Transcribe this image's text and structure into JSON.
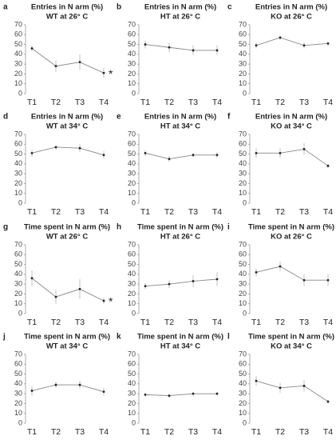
{
  "chart_data": [
    {
      "type": "line",
      "panel_label": "a",
      "title": "Entries in N arm (%)",
      "subtitle": "WT at 26° C",
      "categories": [
        "T1",
        "T2",
        "T3",
        "T4"
      ],
      "series": [
        {
          "color": "#888888",
          "values": [
            46,
            28,
            32,
            21
          ],
          "errors": [
            3,
            6,
            8,
            5
          ]
        }
      ],
      "annotation": "*",
      "ylim": [
        0,
        70
      ],
      "yticks": [
        0,
        10,
        20,
        30,
        40,
        50,
        60,
        70
      ]
    },
    {
      "type": "line",
      "panel_label": "b",
      "title": "Entries in N arm (%)",
      "subtitle": "HT at 26° C",
      "categories": [
        "T1",
        "T2",
        "T3",
        "T4"
      ],
      "series": [
        {
          "color": "#888888",
          "values": [
            50,
            47,
            44,
            44
          ],
          "errors": [
            4,
            5,
            5,
            5
          ]
        }
      ],
      "ylim": [
        0,
        70
      ],
      "yticks": [
        0,
        10,
        20,
        30,
        40,
        50,
        60,
        70
      ]
    },
    {
      "type": "line",
      "panel_label": "c",
      "title": "Entries in N arm (%)",
      "subtitle": "KO at 26° C",
      "categories": [
        "T1",
        "T2",
        "T3",
        "T4"
      ],
      "series": [
        {
          "color": "#888888",
          "values": [
            49,
            57,
            49,
            51
          ],
          "errors": [
            3,
            2,
            3,
            2
          ]
        }
      ],
      "ylim": [
        0,
        70
      ],
      "yticks": [
        0,
        10,
        20,
        30,
        40,
        50,
        60,
        70
      ]
    },
    {
      "type": "line",
      "panel_label": "d",
      "title": "Entries in N arm (%)",
      "subtitle": "WT at 34° C",
      "categories": [
        "T1",
        "T2",
        "T3",
        "T4"
      ],
      "series": [
        {
          "color": "#888888",
          "values": [
            51,
            57,
            56,
            49
          ],
          "errors": [
            4,
            2,
            4,
            4
          ]
        }
      ],
      "ylim": [
        0,
        70
      ],
      "yticks": [
        0,
        10,
        20,
        30,
        40,
        50,
        60,
        70
      ]
    },
    {
      "type": "line",
      "panel_label": "e",
      "title": "Entries in N arm (%)",
      "subtitle": "HT at 34° C",
      "categories": [
        "T1",
        "T2",
        "T3",
        "T4"
      ],
      "series": [
        {
          "color": "#888888",
          "values": [
            51,
            45,
            49,
            49
          ],
          "errors": [
            3,
            3,
            2,
            3
          ]
        }
      ],
      "ylim": [
        0,
        70
      ],
      "yticks": [
        0,
        10,
        20,
        30,
        40,
        50,
        60,
        70
      ]
    },
    {
      "type": "line",
      "panel_label": "f",
      "title": "Entries in N arm (%)",
      "subtitle": "KO at 34° C",
      "categories": [
        "T1",
        "T2",
        "T3",
        "T4"
      ],
      "series": [
        {
          "color": "#888888",
          "values": [
            51,
            51,
            55,
            38
          ],
          "errors": [
            5,
            5,
            6,
            2
          ]
        }
      ],
      "ylim": [
        0,
        70
      ],
      "yticks": [
        0,
        10,
        20,
        30,
        40,
        50,
        60,
        70
      ]
    },
    {
      "type": "line",
      "panel_label": "g",
      "title": "Time spent in N arm (%)",
      "subtitle": "WT at 26° C",
      "categories": [
        "T1",
        "T2",
        "T3",
        "T4"
      ],
      "series": [
        {
          "color": "#888888",
          "values": [
            36,
            17,
            25,
            13
          ],
          "errors": [
            8,
            7,
            10,
            3
          ]
        }
      ],
      "annotation": "*",
      "ylim": [
        0,
        70
      ],
      "yticks": [
        0,
        10,
        20,
        30,
        40,
        50,
        60,
        70
      ]
    },
    {
      "type": "line",
      "panel_label": "h",
      "title": "Time spent in N arm (%)",
      "subtitle": "HT at 26° C",
      "categories": [
        "T1",
        "T2",
        "T3",
        "T4"
      ],
      "series": [
        {
          "color": "#888888",
          "values": [
            28,
            30,
            33,
            35
          ],
          "errors": [
            3,
            4,
            6,
            7
          ]
        }
      ],
      "ylim": [
        0,
        70
      ],
      "yticks": [
        0,
        10,
        20,
        30,
        40,
        50,
        60,
        70
      ]
    },
    {
      "type": "line",
      "panel_label": "i",
      "title": "Time spent in N arm (%)",
      "subtitle": "KO at 26° C",
      "categories": [
        "T1",
        "T2",
        "T3",
        "T4"
      ],
      "series": [
        {
          "color": "#888888",
          "values": [
            42,
            48,
            34,
            34
          ],
          "errors": [
            4,
            5,
            6,
            6
          ]
        }
      ],
      "ylim": [
        0,
        70
      ],
      "yticks": [
        0,
        10,
        20,
        30,
        40,
        50,
        60,
        70
      ]
    },
    {
      "type": "line",
      "panel_label": "j",
      "title": "Time spent in N arm (%)",
      "subtitle": "WT at 34° C",
      "categories": [
        "T1",
        "T2",
        "T3",
        "T4"
      ],
      "series": [
        {
          "color": "#888888",
          "values": [
            33,
            39,
            39,
            32
          ],
          "errors": [
            5,
            3,
            4,
            4
          ]
        }
      ],
      "ylim": [
        0,
        70
      ],
      "yticks": [
        0,
        10,
        20,
        30,
        40,
        50,
        60,
        70
      ]
    },
    {
      "type": "line",
      "panel_label": "k",
      "title": "Time spent in N arm (%)",
      "subtitle": "HT at 34° C",
      "categories": [
        "T1",
        "T2",
        "T3",
        "T4"
      ],
      "series": [
        {
          "color": "#888888",
          "values": [
            29,
            28,
            30,
            30
          ],
          "errors": [
            2,
            2,
            2,
            2
          ]
        }
      ],
      "ylim": [
        0,
        70
      ],
      "yticks": [
        0,
        10,
        20,
        30,
        40,
        50,
        60,
        70
      ]
    },
    {
      "type": "line",
      "panel_label": "l",
      "title": "Time spent in N arm (%)",
      "subtitle": "KO at 34° C",
      "categories": [
        "T1",
        "T2",
        "T3",
        "T4"
      ],
      "series": [
        {
          "color": "#888888",
          "values": [
            43,
            36,
            38,
            22
          ],
          "errors": [
            5,
            5,
            6,
            2
          ]
        }
      ],
      "ylim": [
        0,
        70
      ],
      "yticks": [
        0,
        10,
        20,
        30,
        40,
        50,
        60,
        70
      ]
    }
  ]
}
